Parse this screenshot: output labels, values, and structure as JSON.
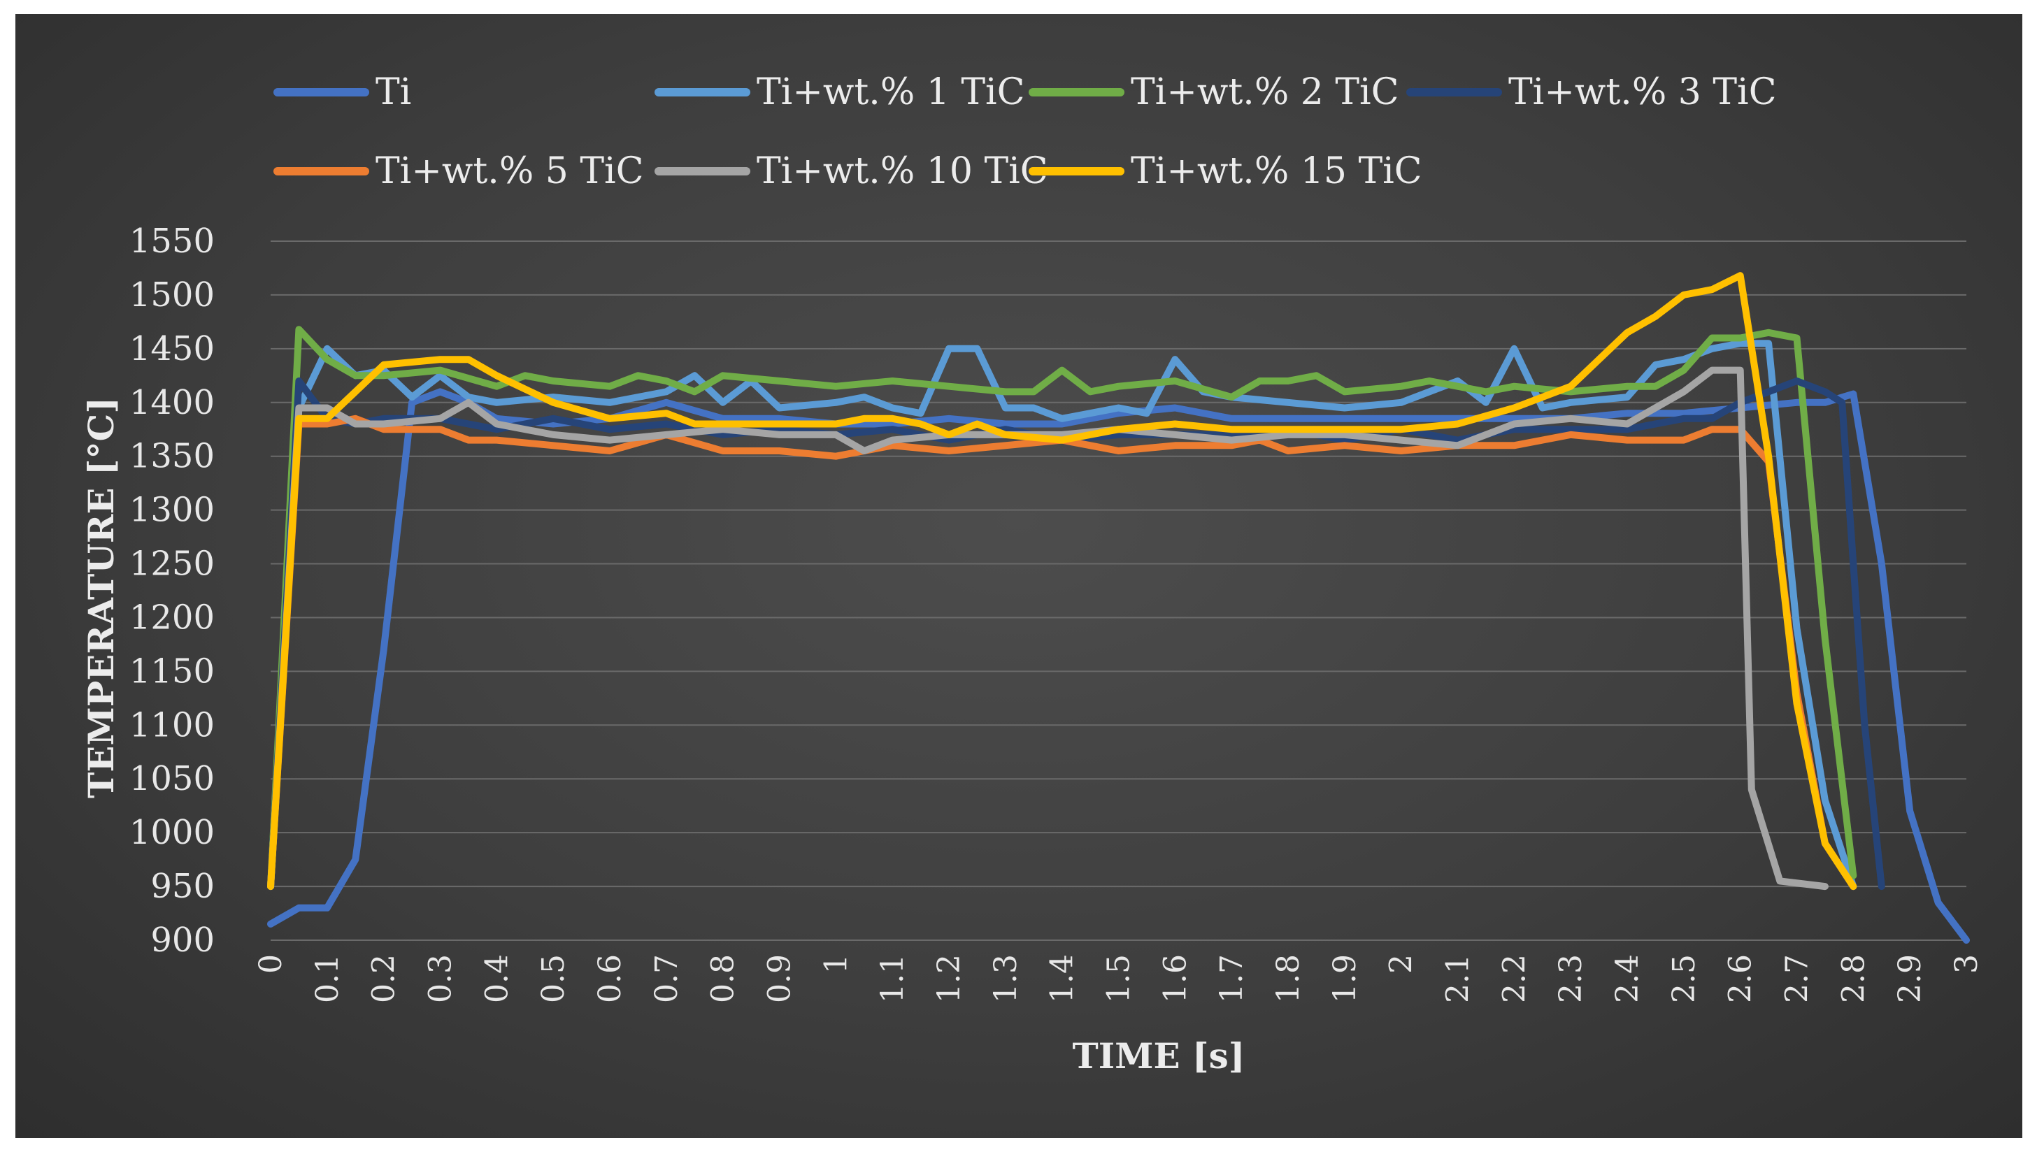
{
  "chart_data": {
    "type": "line",
    "title": "",
    "xlabel": "TIME [s]",
    "ylabel": "TEMPERATURE [°C]",
    "ylim": [
      900,
      1550
    ],
    "xlim": [
      0,
      3
    ],
    "grid": true,
    "legend_position": "top",
    "y_ticks": [
      "900",
      "950",
      "1000",
      "1050",
      "1100",
      "1150",
      "1200",
      "1250",
      "1300",
      "1350",
      "1400",
      "1450",
      "1500",
      "1550"
    ],
    "x_ticks": [
      "0",
      "0.1",
      "0.2",
      "0.3",
      "0.4",
      "0.5",
      "0.6",
      "0.7",
      "0.8",
      "0.9",
      "1",
      "1.1",
      "1.2",
      "1.3",
      "1.4",
      "1.5",
      "1.6",
      "1.7",
      "1.8",
      "1.9",
      "2",
      "2.1",
      "2.2",
      "2.3",
      "2.4",
      "2.5",
      "2.6",
      "2.7",
      "2.8",
      "2.9",
      "3"
    ],
    "series": [
      {
        "name": "Ti",
        "color": "#4472C4",
        "points": [
          [
            0,
            915
          ],
          [
            0.05,
            930
          ],
          [
            0.1,
            930
          ],
          [
            0.15,
            975
          ],
          [
            0.2,
            1170
          ],
          [
            0.25,
            1400
          ],
          [
            0.3,
            1410
          ],
          [
            0.35,
            1400
          ],
          [
            0.4,
            1385
          ],
          [
            0.5,
            1380
          ],
          [
            0.6,
            1385
          ],
          [
            0.7,
            1400
          ],
          [
            0.8,
            1385
          ],
          [
            0.9,
            1385
          ],
          [
            1,
            1380
          ],
          [
            1.1,
            1380
          ],
          [
            1.2,
            1385
          ],
          [
            1.3,
            1380
          ],
          [
            1.4,
            1380
          ],
          [
            1.5,
            1390
          ],
          [
            1.6,
            1395
          ],
          [
            1.7,
            1385
          ],
          [
            1.8,
            1385
          ],
          [
            1.9,
            1385
          ],
          [
            2,
            1385
          ],
          [
            2.1,
            1385
          ],
          [
            2.2,
            1385
          ],
          [
            2.3,
            1385
          ],
          [
            2.4,
            1390
          ],
          [
            2.5,
            1390
          ],
          [
            2.6,
            1395
          ],
          [
            2.7,
            1400
          ],
          [
            2.75,
            1400
          ],
          [
            2.8,
            1408
          ],
          [
            2.85,
            1250
          ],
          [
            2.9,
            1020
          ],
          [
            2.95,
            935
          ],
          [
            3,
            900
          ]
        ]
      },
      {
        "name": "Ti+wt.% 1 TiC",
        "color": "#5B9BD5",
        "points": [
          [
            0,
            950
          ],
          [
            0.05,
            1395
          ],
          [
            0.1,
            1450
          ],
          [
            0.15,
            1425
          ],
          [
            0.2,
            1430
          ],
          [
            0.25,
            1405
          ],
          [
            0.3,
            1425
          ],
          [
            0.35,
            1405
          ],
          [
            0.4,
            1400
          ],
          [
            0.5,
            1405
          ],
          [
            0.6,
            1400
          ],
          [
            0.7,
            1410
          ],
          [
            0.75,
            1425
          ],
          [
            0.8,
            1400
          ],
          [
            0.85,
            1420
          ],
          [
            0.9,
            1395
          ],
          [
            1,
            1400
          ],
          [
            1.05,
            1405
          ],
          [
            1.1,
            1395
          ],
          [
            1.15,
            1390
          ],
          [
            1.2,
            1450
          ],
          [
            1.25,
            1450
          ],
          [
            1.3,
            1395
          ],
          [
            1.35,
            1395
          ],
          [
            1.4,
            1385
          ],
          [
            1.45,
            1390
          ],
          [
            1.5,
            1395
          ],
          [
            1.55,
            1390
          ],
          [
            1.6,
            1440
          ],
          [
            1.65,
            1410
          ],
          [
            1.7,
            1405
          ],
          [
            1.8,
            1400
          ],
          [
            1.9,
            1395
          ],
          [
            2,
            1400
          ],
          [
            2.1,
            1420
          ],
          [
            2.15,
            1400
          ],
          [
            2.2,
            1450
          ],
          [
            2.25,
            1395
          ],
          [
            2.3,
            1400
          ],
          [
            2.4,
            1405
          ],
          [
            2.45,
            1435
          ],
          [
            2.5,
            1440
          ],
          [
            2.55,
            1450
          ],
          [
            2.6,
            1455
          ],
          [
            2.65,
            1455
          ],
          [
            2.7,
            1190
          ],
          [
            2.75,
            1030
          ],
          [
            2.8,
            950
          ]
        ]
      },
      {
        "name": "Ti+wt.% 2 TiC",
        "color": "#70AD47",
        "points": [
          [
            0,
            950
          ],
          [
            0.05,
            1468
          ],
          [
            0.1,
            1440
          ],
          [
            0.15,
            1425
          ],
          [
            0.2,
            1425
          ],
          [
            0.3,
            1430
          ],
          [
            0.4,
            1415
          ],
          [
            0.45,
            1425
          ],
          [
            0.5,
            1420
          ],
          [
            0.6,
            1415
          ],
          [
            0.65,
            1425
          ],
          [
            0.7,
            1420
          ],
          [
            0.75,
            1410
          ],
          [
            0.8,
            1425
          ],
          [
            0.9,
            1420
          ],
          [
            1,
            1415
          ],
          [
            1.1,
            1420
          ],
          [
            1.2,
            1415
          ],
          [
            1.3,
            1410
          ],
          [
            1.35,
            1410
          ],
          [
            1.4,
            1430
          ],
          [
            1.45,
            1410
          ],
          [
            1.5,
            1415
          ],
          [
            1.6,
            1420
          ],
          [
            1.7,
            1405
          ],
          [
            1.75,
            1420
          ],
          [
            1.8,
            1420
          ],
          [
            1.85,
            1425
          ],
          [
            1.9,
            1410
          ],
          [
            2,
            1415
          ],
          [
            2.05,
            1420
          ],
          [
            2.1,
            1415
          ],
          [
            2.15,
            1410
          ],
          [
            2.2,
            1415
          ],
          [
            2.3,
            1410
          ],
          [
            2.4,
            1415
          ],
          [
            2.45,
            1415
          ],
          [
            2.5,
            1430
          ],
          [
            2.55,
            1460
          ],
          [
            2.6,
            1460
          ],
          [
            2.65,
            1465
          ],
          [
            2.7,
            1460
          ],
          [
            2.75,
            1180
          ],
          [
            2.8,
            960
          ]
        ]
      },
      {
        "name": "Ti+wt.% 3 TiC",
        "color": "#264478",
        "points": [
          [
            0,
            950
          ],
          [
            0.05,
            1420
          ],
          [
            0.1,
            1385
          ],
          [
            0.15,
            1380
          ],
          [
            0.2,
            1385
          ],
          [
            0.3,
            1385
          ],
          [
            0.4,
            1375
          ],
          [
            0.5,
            1385
          ],
          [
            0.6,
            1375
          ],
          [
            0.7,
            1380
          ],
          [
            0.8,
            1370
          ],
          [
            0.9,
            1375
          ],
          [
            1,
            1370
          ],
          [
            1.1,
            1375
          ],
          [
            1.2,
            1365
          ],
          [
            1.3,
            1375
          ],
          [
            1.4,
            1365
          ],
          [
            1.5,
            1370
          ],
          [
            1.6,
            1370
          ],
          [
            1.7,
            1370
          ],
          [
            1.8,
            1375
          ],
          [
            1.9,
            1365
          ],
          [
            2,
            1375
          ],
          [
            2.1,
            1365
          ],
          [
            2.2,
            1375
          ],
          [
            2.3,
            1375
          ],
          [
            2.4,
            1375
          ],
          [
            2.5,
            1385
          ],
          [
            2.55,
            1385
          ],
          [
            2.6,
            1400
          ],
          [
            2.65,
            1410
          ],
          [
            2.7,
            1420
          ],
          [
            2.75,
            1410
          ],
          [
            2.78,
            1400
          ],
          [
            2.8,
            1250
          ],
          [
            2.82,
            1100
          ],
          [
            2.85,
            950
          ]
        ]
      },
      {
        "name": "Ti+wt.% 5 TiC",
        "color": "#ED7D31",
        "points": [
          [
            0,
            950
          ],
          [
            0.05,
            1380
          ],
          [
            0.1,
            1380
          ],
          [
            0.15,
            1385
          ],
          [
            0.2,
            1375
          ],
          [
            0.3,
            1375
          ],
          [
            0.35,
            1365
          ],
          [
            0.4,
            1365
          ],
          [
            0.5,
            1360
          ],
          [
            0.6,
            1355
          ],
          [
            0.7,
            1370
          ],
          [
            0.8,
            1355
          ],
          [
            0.9,
            1355
          ],
          [
            1,
            1350
          ],
          [
            1.1,
            1360
          ],
          [
            1.2,
            1355
          ],
          [
            1.3,
            1360
          ],
          [
            1.4,
            1365
          ],
          [
            1.5,
            1355
          ],
          [
            1.6,
            1360
          ],
          [
            1.7,
            1360
          ],
          [
            1.75,
            1365
          ],
          [
            1.8,
            1355
          ],
          [
            1.9,
            1360
          ],
          [
            2,
            1355
          ],
          [
            2.1,
            1360
          ],
          [
            2.2,
            1360
          ],
          [
            2.3,
            1370
          ],
          [
            2.4,
            1365
          ],
          [
            2.5,
            1365
          ],
          [
            2.55,
            1375
          ],
          [
            2.6,
            1375
          ],
          [
            2.65,
            1345
          ],
          [
            2.7,
            1130
          ],
          [
            2.75,
            990
          ],
          [
            2.8,
            950
          ]
        ]
      },
      {
        "name": "Ti+wt.% 10 TiC",
        "color": "#A5A5A5",
        "points": [
          [
            0,
            950
          ],
          [
            0.05,
            1395
          ],
          [
            0.1,
            1395
          ],
          [
            0.15,
            1380
          ],
          [
            0.2,
            1380
          ],
          [
            0.3,
            1385
          ],
          [
            0.35,
            1400
          ],
          [
            0.4,
            1380
          ],
          [
            0.5,
            1370
          ],
          [
            0.6,
            1365
          ],
          [
            0.7,
            1370
          ],
          [
            0.8,
            1375
          ],
          [
            0.9,
            1370
          ],
          [
            1,
            1370
          ],
          [
            1.05,
            1355
          ],
          [
            1.1,
            1365
          ],
          [
            1.2,
            1370
          ],
          [
            1.3,
            1370
          ],
          [
            1.4,
            1370
          ],
          [
            1.5,
            1375
          ],
          [
            1.6,
            1370
          ],
          [
            1.7,
            1365
          ],
          [
            1.8,
            1370
          ],
          [
            1.9,
            1370
          ],
          [
            2,
            1365
          ],
          [
            2.1,
            1360
          ],
          [
            2.2,
            1380
          ],
          [
            2.3,
            1385
          ],
          [
            2.4,
            1380
          ],
          [
            2.5,
            1410
          ],
          [
            2.55,
            1430
          ],
          [
            2.6,
            1430
          ],
          [
            2.62,
            1040
          ],
          [
            2.67,
            955
          ],
          [
            2.75,
            950
          ]
        ]
      },
      {
        "name": "Ti+wt.% 15 TiC",
        "color": "#FFC000",
        "points": [
          [
            0,
            950
          ],
          [
            0.05,
            1385
          ],
          [
            0.1,
            1385
          ],
          [
            0.15,
            1410
          ],
          [
            0.2,
            1435
          ],
          [
            0.3,
            1440
          ],
          [
            0.35,
            1440
          ],
          [
            0.4,
            1425
          ],
          [
            0.5,
            1400
          ],
          [
            0.6,
            1385
          ],
          [
            0.7,
            1390
          ],
          [
            0.75,
            1380
          ],
          [
            0.8,
            1380
          ],
          [
            0.9,
            1380
          ],
          [
            1,
            1380
          ],
          [
            1.05,
            1385
          ],
          [
            1.1,
            1385
          ],
          [
            1.15,
            1380
          ],
          [
            1.2,
            1370
          ],
          [
            1.25,
            1380
          ],
          [
            1.3,
            1370
          ],
          [
            1.4,
            1365
          ],
          [
            1.5,
            1375
          ],
          [
            1.6,
            1380
          ],
          [
            1.7,
            1375
          ],
          [
            1.8,
            1375
          ],
          [
            1.9,
            1375
          ],
          [
            2,
            1375
          ],
          [
            2.1,
            1380
          ],
          [
            2.2,
            1395
          ],
          [
            2.3,
            1415
          ],
          [
            2.35,
            1440
          ],
          [
            2.4,
            1465
          ],
          [
            2.45,
            1480
          ],
          [
            2.5,
            1500
          ],
          [
            2.55,
            1505
          ],
          [
            2.6,
            1518
          ],
          [
            2.65,
            1350
          ],
          [
            2.7,
            1120
          ],
          [
            2.75,
            990
          ],
          [
            2.8,
            950
          ]
        ]
      }
    ]
  }
}
